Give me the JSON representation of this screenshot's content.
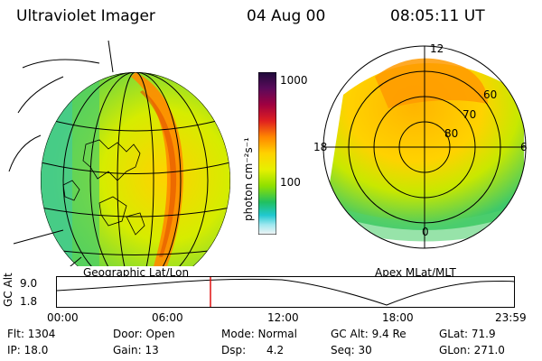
{
  "header": {
    "instrument": "Ultraviolet Imager",
    "date": "04 Aug 00",
    "time": "08:05:11 UT"
  },
  "colorbar": {
    "unit_label": "photon cm⁻²s⁻¹",
    "tick_high": "1000",
    "tick_mid": "100",
    "colors": [
      "#1e0a3a",
      "#5a0a5a",
      "#a00040",
      "#e02020",
      "#ff8800",
      "#ffd200",
      "#e6f000",
      "#8fe000",
      "#20c060",
      "#20c8d0",
      "#a0e8f0",
      "#f4f4f4"
    ]
  },
  "geo_panel": {
    "caption": "Geographic Lat/Lon"
  },
  "polar_panel": {
    "caption": "Apex MLat/MLT",
    "mlt_top": "12",
    "mlt_left": "18",
    "mlt_right": "6",
    "mlt_bottom": "0",
    "lat_60": "60",
    "lat_70": "70",
    "lat_80": "80"
  },
  "altitude_plot": {
    "ylabel": "GC Alt",
    "y_high": "9.0",
    "y_low": "1.8",
    "x_ticks": [
      "00:00",
      "06:00",
      "12:00",
      "18:00",
      "23:59"
    ],
    "current_time_marker": "08:05"
  },
  "info": {
    "flt": "Flt: 1304",
    "door": "Door: Open",
    "mode": "Mode: Normal",
    "gc_alt": "GC Alt: 9.4 Re",
    "glat": "GLat:  71.9",
    "ip": "IP: 18.0",
    "gain": "Gain: 13",
    "dsp": "Dsp:      4.2",
    "seq": "Seq: 30",
    "glon": "GLon: 271.0"
  }
}
